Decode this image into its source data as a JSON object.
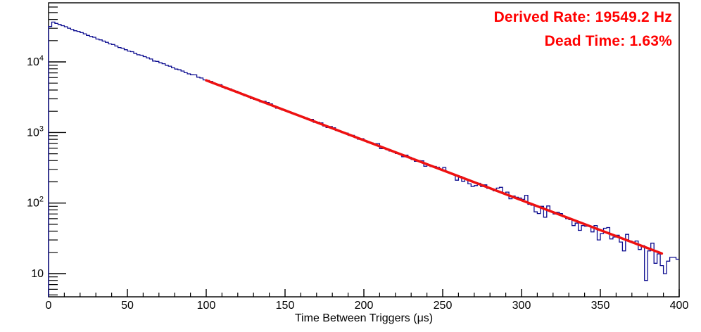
{
  "annotations": {
    "derived_rate": "Derived Rate: 19549.2 Hz",
    "dead_time": "Dead Time: 1.63%",
    "color": "#ff0000"
  },
  "chart_data": {
    "type": "histogram",
    "title": "",
    "xlabel": "Time Between Triggers (μs)",
    "ylabel": "",
    "x_range": [
      0,
      400
    ],
    "y_range": [
      4.69,
      68800
    ],
    "y_scale": "log",
    "grid": false,
    "legend": false,
    "x_ticks": [
      0,
      50,
      100,
      150,
      200,
      250,
      300,
      350,
      400
    ],
    "x_minor_step_us": 10,
    "y_ticks": [
      10,
      100,
      1000,
      10000
    ],
    "bin_width_us": 2,
    "n_bins": 200,
    "histogram_color": "#0b0b8f",
    "axis_color": "#000000",
    "model": {
      "amplitude_counts": 38900,
      "tau_us": 51.15,
      "first_bin_factor": 0.82,
      "noise_seed": 7
    },
    "fit_line": {
      "color": "#ee1111",
      "t_start_us": 100,
      "t_end_us": 389,
      "counts_at_start": 5480,
      "tau_us": 51.15
    },
    "key_points": [
      {
        "t_us": 0,
        "counts": 38900
      },
      {
        "t_us": 50,
        "counts": 14640
      },
      {
        "t_us": 100,
        "counts": 5480
      },
      {
        "t_us": 150,
        "counts": 2060
      },
      {
        "t_us": 200,
        "counts": 775
      },
      {
        "t_us": 250,
        "counts": 291
      },
      {
        "t_us": 300,
        "counts": 110
      },
      {
        "t_us": 350,
        "counts": 41
      },
      {
        "t_us": 400,
        "counts": 16
      }
    ],
    "derived_rate_hz": 19549.2,
    "dead_time_pct": 1.63
  }
}
